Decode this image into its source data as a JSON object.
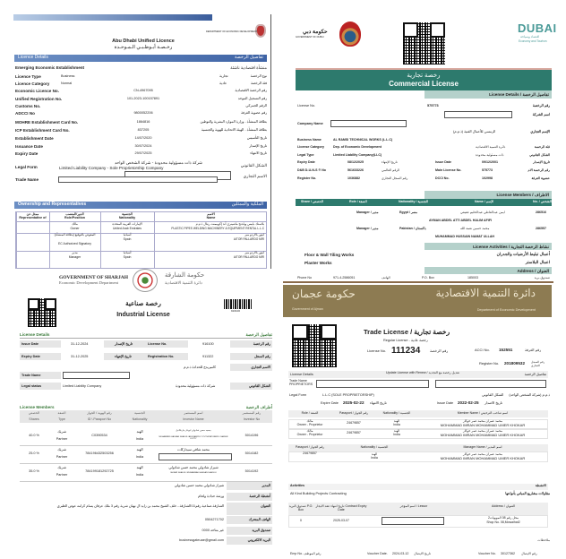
{
  "abu_dhabi": {
    "dept_name": "DEPARTMENT OF ECONOMIC DEVELOPMENT",
    "title_en": "Abu Dhabi Unified Licence",
    "title_ar": "رخـصـة أبـوظـبـي الـمـوحـدة",
    "section_details_en": "Licence Details",
    "section_details_ar": "تفاصيل الرخصة",
    "establishment_en": "Emerging Economic Establishment",
    "establishment_ar": "منشأة اقتصادية ناشئة",
    "fields": [
      {
        "label_en": "Licence Type",
        "value_en": "Business",
        "value_ar": "تجارية",
        "label_ar": "نوع الرخصة"
      },
      {
        "label_en": "Licence Category",
        "value_en": "Normal",
        "value_ar": "عادية",
        "label_ar": "فئة الرخصة"
      },
      {
        "label_en": "Economic Licence No.",
        "value": "CN-4967095",
        "label_ar": "رقم الرخصة الاقتصادية"
      },
      {
        "label_en": "Unified Registration No.",
        "value": "101-2023-100157891",
        "label_ar": "رقم التسجيل الموحد"
      },
      {
        "label_en": "Customs No.",
        "value": "",
        "label_ar": "الرقم الجمركي"
      },
      {
        "label_en": "ADCCI No",
        "value": "9800052206",
        "label_ar": "رقم عضوية الغرفة"
      },
      {
        "label_en": "MOHRE Establishment Card No.",
        "value": "1864816",
        "label_ar": "بطاقة المنشأة - وزارة الموارد البشرية والتوطين"
      },
      {
        "label_en": "ICP Establishment Card No.",
        "value": "837205",
        "label_ar": "بطاقة المنشأة - الهيئة الاتحادية للهوية والجنسية"
      },
      {
        "label_en": "Establishment Date",
        "value": "14/07/2020",
        "label_ar": "تاريخ التأسيس"
      },
      {
        "label_en": "Issuance Date",
        "value": "30/07/2024",
        "label_ar": "تاريخ الإصدار"
      },
      {
        "label_en": "Expiry Date",
        "value": "29/07/2025",
        "label_ar": "تاريخ الانتهاء"
      }
    ],
    "legal_form_en": "Legal Form",
    "legal_form_value_en": "Limited Liability Company - Sole Proprietorship Company",
    "legal_form_value_ar": "شركة ذات مسؤولية محدودة - شركة الشخص الواحد",
    "legal_form_ar": "الشكل القانوني",
    "trade_name_en": "Trade Name",
    "trade_name_ar": "الاسم التجاري",
    "section_owners_en": "Ownership and Representatives",
    "section_owners_ar": "الملكية والممثلين",
    "table_headers": [
      {
        "ar": "ممثل عن",
        "en": "Representative of"
      },
      {
        "ar": "الدور/المنصب",
        "en": "Role/Position"
      },
      {
        "ar": "الجنسية",
        "en": "Nationality"
      },
      {
        "ar": "الاسم",
        "en": "Name"
      }
    ],
    "table_rows": [
      {
        "rep": "",
        "role_ar": "مالك",
        "role_en": "Owner",
        "nat_ar": "الإمارات العربية المتحدة",
        "nat_en": "United Arab Emirates",
        "name_ar": "بلاستك بايبس ويلدنج ماشينري آند إكويبمنت رنتال ذ.م.م",
        "name_en": "PLASTIC PIPES WELDING MACHINERY & EQUIPMENT RENTAL L.L.C"
      },
      {
        "rep": "",
        "role_ar": "المفوض بالتوقيع (بطاقة المنشأة)",
        "role_en": "EC Authorized Signatory",
        "nat_ar": "أسبانيا",
        "nat_en": "Spain",
        "name_ar": "ايتور بالاردو مير",
        "name_en": "AITOR PALLARDO MIR"
      },
      {
        "rep": "",
        "role_ar": "مدير",
        "role_en": "Manager",
        "nat_ar": "أسبانيا",
        "nat_en": "Spain",
        "name_ar": "ايتور بالاردو مير",
        "name_en": "AITOR PALLARDO MIR"
      }
    ]
  },
  "dubai": {
    "gov_ar": "حكومة دبي",
    "gov_en": "GOVERNMENT OF DUBAI",
    "brand": "DUBAI",
    "brand_sub_ar": "اقتصاد وسياحة",
    "brand_sub_en": "Economy and Tourism",
    "title_ar": "رخصة تجارية",
    "title_en": "Commercial License",
    "details_header": "License Details  /  تفاصيل الرخصة",
    "license_no_label": "License No.",
    "license_no": "575773",
    "license_no_label_ar": "رقم الرخصة",
    "company_name_ar": "اسم الشركة",
    "company_name_label": "Company Name",
    "trade_name_ar_label": "الإسم التجاري",
    "trade_name_ar_value": "الرمسي للأعمال الفنية (ذ.م.م)",
    "business_name_label": "Business Name",
    "business_name": "AL RAMSI TECHNICAL WORKS (L.L.C)",
    "category_label": "License Category",
    "category": "Dep. of Economic Development",
    "category_ar": "دائرة التنمية الاقتصادية",
    "category_label_ar": "فئة الرخصة",
    "legal_label": "Legal Type",
    "legal": "Limited Liability Company(LLC)",
    "legal_ar": "ذات مسئولية محدودة",
    "legal_label_ar": "الشكل القانوني",
    "expiry_label": "Expiry Date",
    "expiry": "08/12/2025",
    "expiry_label_ar": "تاريخ الإنتهاء",
    "issue_label": "Issue Date",
    "issue": "09/12/2001",
    "issue_label_ar": "تاريخ الإصدار",
    "duns_label": "D&B D-U-N-S ® No",
    "duns": "561633226",
    "duns_label_ar": "الرقم العالمي",
    "main_label": "Main License No.",
    "main": "575773",
    "main_label_ar": "رقم الرخصة الام",
    "register_label": "Register No.",
    "register": "1036882",
    "register_label_ar": "رقم السجل التجاري",
    "dcci_label": "DCCI No.",
    "dcci": "102998",
    "dcci_label_ar": "عضوية الغرفة",
    "members_header": "License Members  /  الاطراف",
    "members_columns": [
      "Share / الحصص",
      "Role / الصفة",
      "Nationality / الجنسية",
      "Name / الإسم",
      "No. / رقم الشخص"
    ],
    "members": [
      {
        "role": "Manager / مدير",
        "nationality": "Egypt / مصر",
        "name_ar": "ايمن عبدالعاطي عبدالحليم عفيفي",
        "name_en": "AYMAN ABDEL ATTI ABDEL HALIM AFIFI",
        "no": "286516"
      },
      {
        "role": "Manager / مدير",
        "nationality": "Pakistan / باكستان",
        "name_ar": "محمد حسين نعمة الله",
        "name_en": "MUHAMMAD HUSSAIN NAMAT ULLAH",
        "no": "286557"
      }
    ],
    "activities_header": "License Activities  /  نشاط الرخصة التجارية",
    "activities": [
      {
        "en": "Floor & Wall Tiling Works",
        "ar": "أعمال تبليط الأرضيات والجدران"
      },
      {
        "en": "Plaster Works",
        "ar": "اعمال البلاستر"
      }
    ],
    "address_header": "Address  /  العنوان",
    "phone_label": "Phone No",
    "phone": "971-4-2586051",
    "phone_label_ar": "الهاتف",
    "po_label": "P.O. Box",
    "po": "185003",
    "po_label_ar": "صندوق بريد"
  },
  "sharjah": {
    "gov_en": "GOVERNMENT OF SHARJAH",
    "dept_en": "Economic Development Department",
    "gov_ar": "حكومة الشارقة",
    "dept_ar": "دائرة التنمية الاقتصادية",
    "title_ar": "رخصة صناعية",
    "title_en": "Industrial License",
    "barcode_no": "916100",
    "details_en": "License Details",
    "details_ar": "تفاصيل الرخصة",
    "issue_label": "Issue Date",
    "issue": "31-12-2024",
    "issue_ar": "تاريخ الإصدار",
    "expiry_label": "Expiry Date",
    "expiry": "31-12-2025",
    "expiry_ar": "تاريخ الإنتهاء",
    "license_label": "License No.",
    "license": "916100",
    "license_ar": "رقم الرخصة",
    "reg_label": "Registration No.",
    "reg": "911322",
    "reg_ar": "رقم السجل",
    "trade_ar_label": "الاسم التجاري",
    "trade_ar_value": "كاميريدج للحدادة ذ.م.م",
    "trade_label": "Trade Name",
    "legal_label": "Legal status",
    "legal": "Limited Liability Company",
    "legal_ar_value": "شركة ذات مسؤولية محدودة",
    "legal_ar_label": "الشكل القانوني",
    "members_en": "License Members",
    "members_ar": "أطراف الرخصة",
    "columns": [
      {
        "ar": "الحصص",
        "en": "Shares"
      },
      {
        "ar": "الصفة",
        "en": "Type"
      },
      {
        "ar": "رقم الهوية / الجواز",
        "en": "ID \\ Passport No"
      },
      {
        "ar": "الجنسية",
        "en": "Nationality"
      },
      {
        "ar": "اسم المستثمر",
        "en": "Investor Name"
      },
      {
        "ar": "رقم المستثمر",
        "en": "Investor No"
      }
    ],
    "rows": [
      {
        "share": "40.0 %",
        "type_ar": "شريك",
        "type_en": "Partner",
        "id": "C0390534",
        "nat_ar": "الهند",
        "nat_en": "India",
        "name_ar": "محمد حسن شادولي ابوبكر مارنكاتيل",
        "name_en": "MUHAMMED HASSAN SHADULI ARUVAMPILLY PUTHIYAPURAYIL KHADER KUTTY",
        "no": "5014196"
      },
      {
        "share": "25.0 %",
        "type_ar": "شريك",
        "type_en": "Partner",
        "id": "784196432503256",
        "nat_ar": "الهند",
        "nat_en": "India",
        "name_ar": "محمد شافي سيداركات",
        "name_en": "",
        "no": "5014182"
      },
      {
        "share": "35.0 %",
        "type_ar": "شريك",
        "type_en": "Partner",
        "id": "784199181292725",
        "nat_ar": "الهند",
        "nat_en": "India",
        "name_ar": "شيراز شادولي محمد حسن شادولي",
        "name_en": "SHIRAZ SHADULI MUHAMMAD HASSAN SHADULI",
        "no": "5014192"
      }
    ],
    "info": [
      {
        "label": "المدير",
        "value": "شيراز شادولي محمد حسن شادولي"
      },
      {
        "label": "أنشطة الرخصة",
        "value": "ورشة حدادة ولحام"
      },
      {
        "label": "العنوان",
        "value": "الشارقة-صناعية رقم11/الشارقة-- خلف الشيخ محمد بن زايد ال نهيان شرية رقم 3 ملك عرفان يسام كرامه عوض الظبري"
      },
      {
        "label": "الهاتف المتحرك",
        "value": "0504271702"
      },
      {
        "label": "صندوق البريد",
        "value": "غير متاحه 0000"
      },
      {
        "label": "البريد الالكتروني",
        "value": "businessgateuae@gmail.com"
      }
    ]
  },
  "ajman": {
    "gov_ar": "حكومة عجمان",
    "gov_en": "Government of Ajman",
    "dept_ar": "دائرة التنمية الاقتصادية",
    "dept_en": "Department of Economic Development",
    "title": "Trade License  /  رخصة تجارية",
    "subtitle": "Regular License - رخصة عادية",
    "license_label": "License No.",
    "license_no": "111234",
    "license_label_ar": "رقم الرخصة",
    "acci_label": "ACCI No.",
    "acci": "152551",
    "acci_label_ar": "رقم الغرفة",
    "register_label": "Register No.",
    "register": "201809532",
    "register_label_ar": "رقم السجل التجاري",
    "details_en": "License Details",
    "update_label": "Update License with Renew / تعديل رخصة مع التجديد",
    "details_ar": "تفاصيل الرخصة",
    "trade_label": "Trade Name PROPRIETORS",
    "legal_label": "Legal Form",
    "legal": "L.L.C (SOLE PROPRIETORSHIP)",
    "legal_ar": "ذ.م.م (شركة الشخص الواحد)",
    "legal_label_ar": "الشكل القانوني",
    "expire_label": "Expire Date",
    "expire": "2025-02-22",
    "expire_ar": "تاريخ الانتهاء",
    "issue_label": "Issue Date",
    "issue": "2022-02-25",
    "issue_ar": "تاريخ الاصدار",
    "members_columns": [
      "Role / الصفة",
      "Passport / رقم الجواز",
      "Nationality / الجنسية",
      "Member Name / اسم صاحب الترخيص"
    ],
    "members": [
      {
        "role_ar": "مالك",
        "role": "Owner - Proprietor",
        "passport": "Z4679857",
        "nat_ar": "الهند",
        "nat": "India",
        "name_ar": "محمد عمران محمد عمر خوكار",
        "name": "MOHAMMAD IMRAN MOHAMMAD UMER KHOKAR"
      },
      {
        "role_ar": "مالك",
        "role": "Owner - Proprietor",
        "passport": "Z4679857",
        "nat_ar": "الهند",
        "nat": "India",
        "name_ar": "محمد عمران محمد عمر خوكار",
        "name": "MOHAMMAD IMRAN MOHAMMAD UMER KHOKAR"
      }
    ],
    "manager_columns": [
      "Passport / رقم الجواز",
      "Nationality / الجنسية",
      "Manager Name / اسم المدير"
    ],
    "manager": {
      "passport": "Z4679857",
      "nat_ar": "الهند",
      "nat": "India",
      "name_ar": "محمد عمران محمد عمر خوكار",
      "name": "MOHAMMAD IMRAN MOHAMMAD UMER KHOKAR"
    },
    "activities_en": "Activities",
    "activities_ar": "الانشطة",
    "activity_en": "All Kind Building Projects Contracting",
    "activity_ar": "مقاولات مشاريع المباني بأنواعها",
    "address_columns": [
      "صندوق البريد P.O. Box",
      "تاريخ انتهاء عقد الايجار Contract Expiry Date",
      "اسم المؤجر / Lessor",
      "Address / العنوان"
    ],
    "address_row": {
      "po": "0",
      "contract": "2025-03-07",
      "address_ar": "محل رقم 08 المويهات2",
      "address": "Shop No. 08,Mowaihat2"
    },
    "notes_label": "ملاحظات",
    "emp_label": "Emp No.  رقم الموظف",
    "voucher_date_label": "Voucher Date.",
    "voucher_date": "2024-03-12",
    "voucher_date_ar": "تاريخ الايصال",
    "voucher_no_label": "Voucher No.",
    "voucher_no": "30127362",
    "voucher_no_ar": "رقم الايصال"
  }
}
